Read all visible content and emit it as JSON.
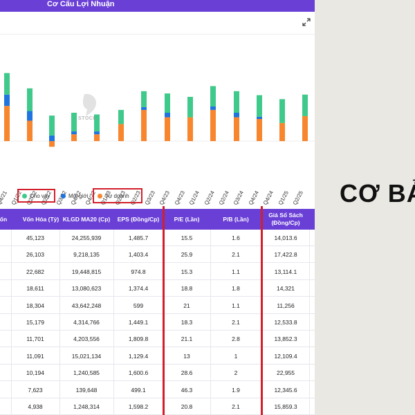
{
  "panel": {
    "title": "Cơ Cấu Lợi Nhuận",
    "expand_icon": "expand-icon"
  },
  "colors": {
    "cho_vay": "#3fc98a",
    "moi_gioi": "#1f74e0",
    "tu_doanh": "#f7862e",
    "header": "#6a3fd6",
    "highlight": "#d21f2a"
  },
  "chart_data": {
    "type": "bar",
    "stacked": true,
    "categories": [
      "Q4/21",
      "Q1/22",
      "Q2/22",
      "Q3/22",
      "Q4/22",
      "Q1/23",
      "Q2/23",
      "Q3/23",
      "Q4/23",
      "Q1/24",
      "Q2/24",
      "Q3/24",
      "Q4/24",
      "Q1/25",
      "Q2/25"
    ],
    "visible_tick_labels": [
      "Q4/21",
      "Q1/22",
      "Q2/22",
      "Q2/22",
      "Q3/22",
      "Q4/22",
      "Q4/22",
      "Q1/23",
      "Q2/23",
      "Q2/23",
      "Q3/23",
      "Q4/23",
      "Q4/23",
      "Q1/24",
      "Q2/24",
      "Q2/24",
      "Q3/24",
      "Q4/24",
      "Q4/24",
      "Q1/25",
      "Q2/25"
    ],
    "series": [
      {
        "name": "Tự doanh",
        "values": [
          62,
          36,
          -10,
          12,
          12,
          30,
          55,
          42,
          42,
          55,
          42,
          39,
          32,
          44,
          44
        ]
      },
      {
        "name": "Môi giới",
        "values": [
          20,
          17,
          10,
          5,
          5,
          0,
          5,
          8,
          0,
          6,
          8,
          4,
          0,
          0,
          0
        ]
      },
      {
        "name": "Cho vay",
        "values": [
          38,
          40,
          35,
          33,
          30,
          25,
          28,
          34,
          36,
          36,
          38,
          38,
          42,
          38,
          46
        ]
      }
    ]
  },
  "legend": [
    {
      "label": "Cho vay",
      "boxed": true
    },
    {
      "label": "Môi giới",
      "boxed": false
    },
    {
      "label": "Tự doanh",
      "boxed": true
    }
  ],
  "watermark_text": "STOCK",
  "table": {
    "headers": [
      "ốn",
      "Vốn Hóa (Tỷ)",
      "KLGD MA20 (Cp)",
      "EPS (Đồng/Cp)",
      "P/E (Lần)",
      "P/B (Lần)",
      "Giá Sổ Sách (Đồng/Cp)"
    ],
    "rows": [
      [
        "45,123",
        "24,255,939",
        "1,485.7",
        "15.5",
        "1.6",
        "14,013.6"
      ],
      [
        "26,103",
        "9,218,135",
        "1,403.4",
        "25.9",
        "2.1",
        "17,422.8"
      ],
      [
        "22,682",
        "19,448,815",
        "974.8",
        "15.3",
        "1.1",
        "13,114.1"
      ],
      [
        "18,611",
        "13,080,623",
        "1,374.4",
        "18.8",
        "1.8",
        "14,321"
      ],
      [
        "18,304",
        "43,642,248",
        "599",
        "21",
        "1.1",
        "11,256"
      ],
      [
        "15,179",
        "4,314,766",
        "1,449.1",
        "18.3",
        "2.1",
        "12,533.8"
      ],
      [
        "11,701",
        "4,203,556",
        "1,809.8",
        "21.1",
        "2.8",
        "13,852.3"
      ],
      [
        "11,091",
        "15,021,134",
        "1,129.4",
        "13",
        "1",
        "12,109.4"
      ],
      [
        "10,194",
        "1,240,585",
        "1,600.6",
        "28.6",
        "2",
        "22,955"
      ],
      [
        "7,623",
        "139,648",
        "499.1",
        "46.3",
        "1.9",
        "12,345.6"
      ],
      [
        "4,938",
        "1,248,314",
        "1,598.2",
        "20.8",
        "2.1",
        "15,859.3"
      ]
    ]
  },
  "side_banner": {
    "text": "CƠ BẢ"
  }
}
